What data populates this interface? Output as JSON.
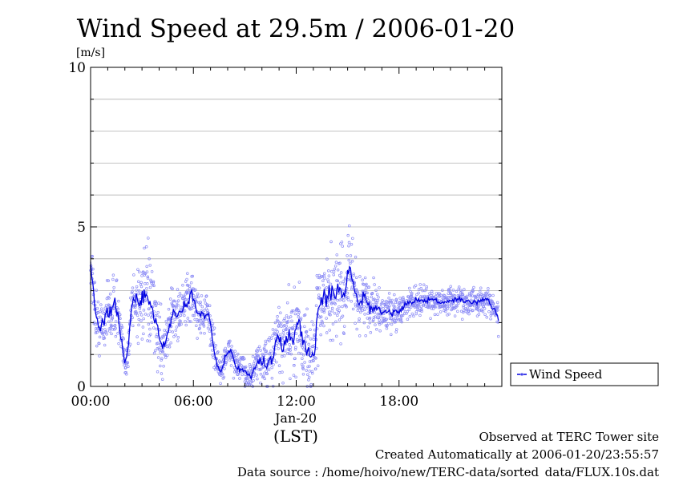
{
  "chart_data": {
    "type": "line",
    "title": "Wind Speed at 29.5m / 2006-01-20",
    "ylabel": "[m/s]",
    "xlabel": "(LST)",
    "x_sublabel": "Jan-20",
    "ylim": [
      0,
      10
    ],
    "xlim_hours": [
      0,
      24
    ],
    "y_ticks": [
      {
        "value": 0,
        "label": "0"
      },
      {
        "value": 5,
        "label": "5"
      },
      {
        "value": 10,
        "label": "10"
      }
    ],
    "x_ticks": [
      {
        "value": 0,
        "label": "00:00"
      },
      {
        "value": 6,
        "label": "06:00"
      },
      {
        "value": 12,
        "label": "12:00"
      },
      {
        "value": 18,
        "label": "18:00"
      }
    ],
    "grid": "horizontal",
    "legend_position": "right",
    "series": [
      {
        "name": "Wind Speed",
        "line_color": "#0000e0",
        "scatter_color": "#8a8af5",
        "x": [
          0.0,
          0.15,
          0.3,
          0.5,
          0.8,
          1.0,
          1.2,
          1.4,
          1.6,
          1.8,
          2.0,
          2.2,
          2.4,
          2.6,
          2.8,
          3.0,
          3.3,
          3.6,
          3.9,
          4.2,
          4.5,
          4.8,
          5.0,
          5.3,
          5.6,
          5.9,
          6.2,
          6.5,
          6.8,
          7.0,
          7.1,
          7.3,
          7.6,
          7.9,
          8.2,
          8.5,
          8.8,
          9.1,
          9.4,
          9.7,
          10.0,
          10.3,
          10.6,
          10.9,
          11.2,
          11.5,
          11.8,
          12.1,
          12.4,
          12.7,
          13.0,
          13.3,
          13.6,
          13.9,
          14.2,
          14.5,
          14.8,
          15.1,
          15.4,
          15.7,
          16.0,
          16.3,
          16.6,
          17.0,
          17.5,
          18.0,
          18.5,
          19.0,
          19.5,
          20.0,
          20.5,
          21.0,
          21.5,
          22.0,
          22.5,
          23.0,
          23.3,
          23.6,
          23.8
        ],
        "values": [
          3.7,
          3.2,
          2.2,
          1.8,
          2.0,
          2.5,
          2.2,
          2.6,
          2.3,
          1.4,
          0.7,
          1.2,
          2.5,
          2.8,
          2.6,
          2.9,
          2.8,
          2.4,
          1.7,
          1.2,
          1.6,
          2.4,
          2.2,
          2.4,
          2.6,
          2.9,
          2.4,
          2.2,
          2.3,
          1.9,
          1.5,
          0.9,
          0.4,
          1.0,
          1.1,
          0.6,
          0.6,
          0.4,
          0.3,
          0.7,
          0.8,
          0.7,
          0.9,
          1.7,
          1.2,
          1.6,
          1.4,
          2.2,
          1.3,
          1.1,
          0.9,
          2.5,
          2.7,
          2.8,
          2.9,
          3.0,
          2.8,
          3.8,
          3.0,
          2.5,
          2.9,
          2.4,
          2.5,
          2.3,
          2.3,
          2.4,
          2.6,
          2.7,
          2.7,
          2.7,
          2.6,
          2.7,
          2.7,
          2.7,
          2.6,
          2.7,
          2.6,
          2.4,
          2.1
        ],
        "spread": [
          0.8,
          0.9,
          0.9,
          0.8,
          0.8,
          0.9,
          0.9,
          0.9,
          0.9,
          0.7,
          0.5,
          0.7,
          0.9,
          1.1,
          1.2,
          1.3,
          1.3,
          1.3,
          1.0,
          0.8,
          0.8,
          0.8,
          0.7,
          0.7,
          0.8,
          0.8,
          0.7,
          0.6,
          0.6,
          0.6,
          0.6,
          0.5,
          0.4,
          0.4,
          0.4,
          0.4,
          0.4,
          0.4,
          0.4,
          0.5,
          0.6,
          0.7,
          0.8,
          1.1,
          1.1,
          1.2,
          1.2,
          1.3,
          1.2,
          1.2,
          1.2,
          1.3,
          1.3,
          1.3,
          1.3,
          1.3,
          1.3,
          1.1,
          1.0,
          0.9,
          0.8,
          0.7,
          0.6,
          0.5,
          0.5,
          0.5,
          0.4,
          0.4,
          0.4,
          0.4,
          0.4,
          0.4,
          0.4,
          0.4,
          0.4,
          0.4,
          0.4,
          0.4,
          0.4
        ]
      }
    ]
  },
  "footer": {
    "line1": "Observed at TERC Tower site",
    "line2": "Created Automatically at 2006-01-20/23:55:57",
    "line3": "Data source : /home/hoivo/new/TERC-data/sorted_data/FLUX.10s.dat"
  }
}
